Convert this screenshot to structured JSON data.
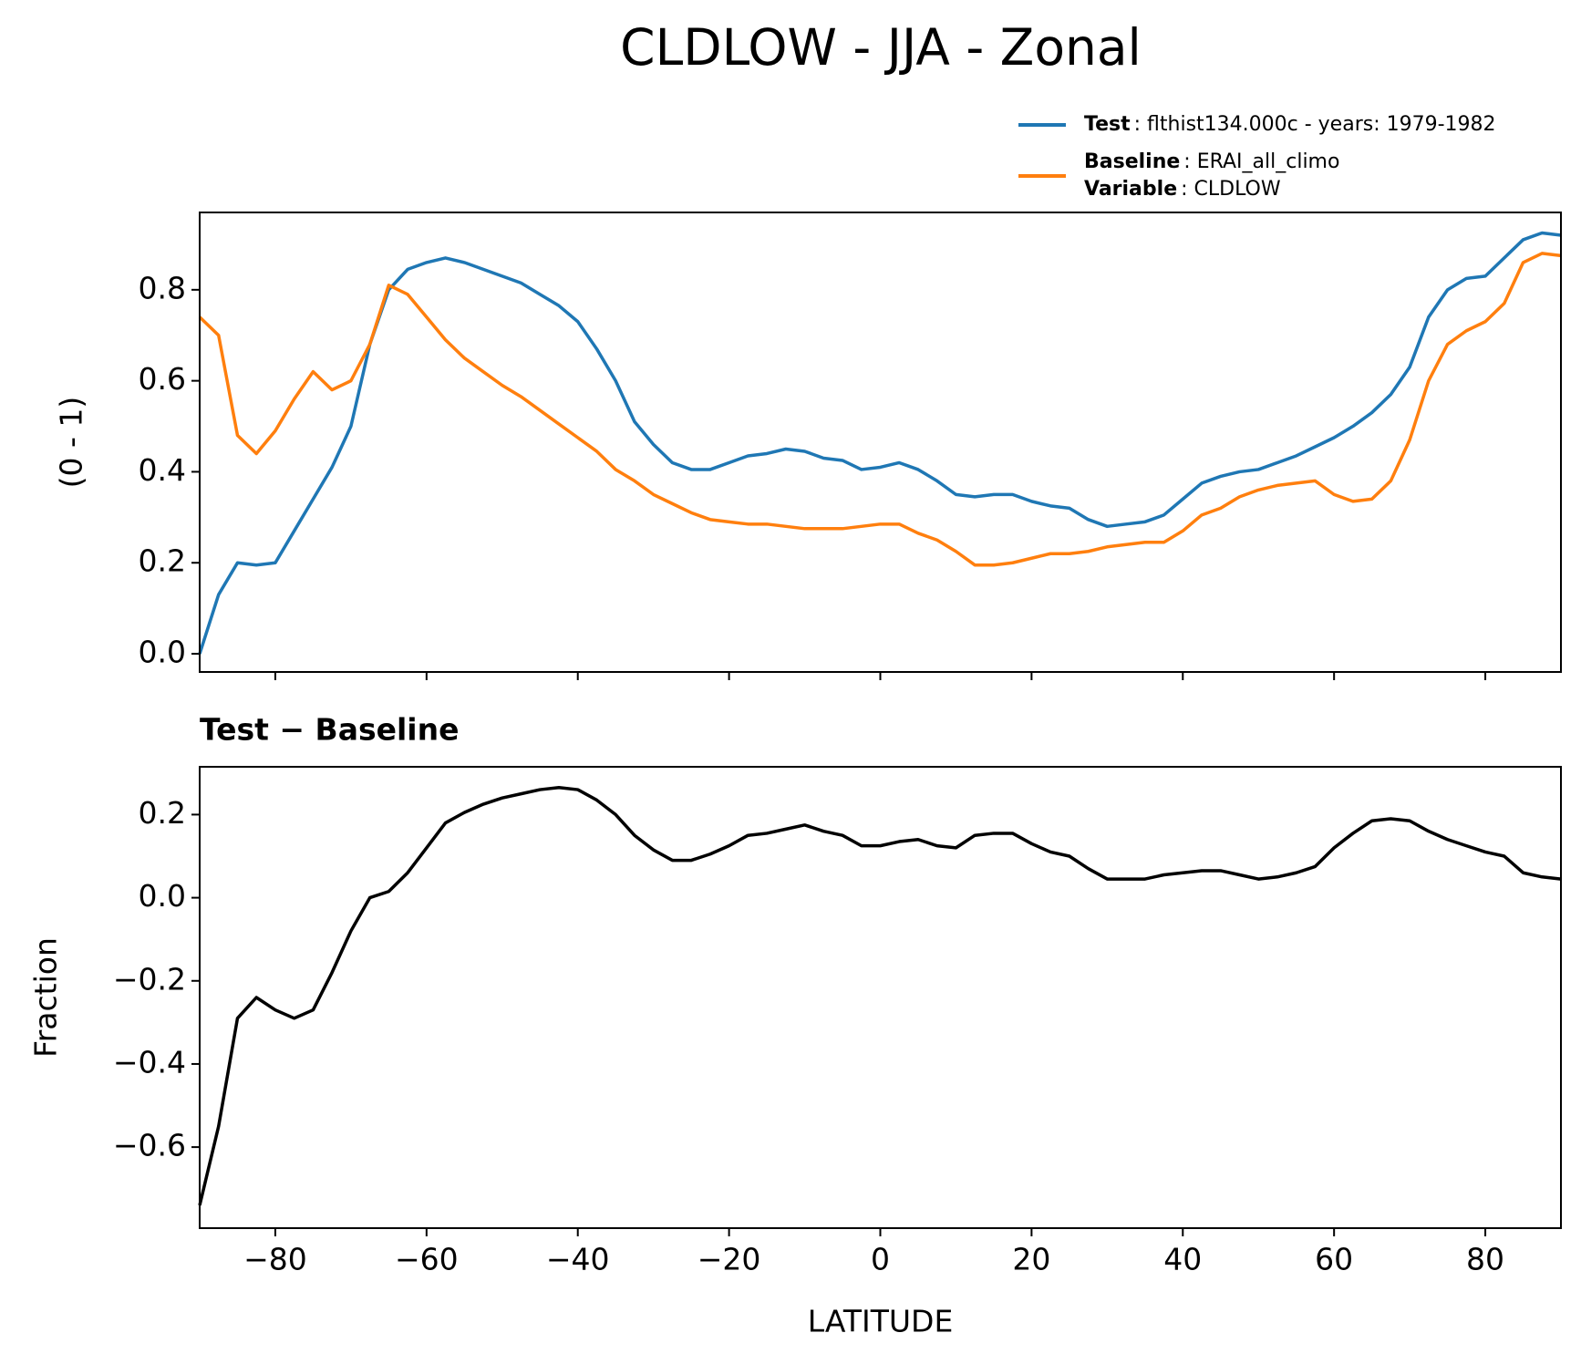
{
  "title": "CLDLOW - JJA - Zonal",
  "chart_data": [
    {
      "type": "line",
      "ylabel": "(0 - 1)",
      "x": [
        -90,
        -87.5,
        -85,
        -82.5,
        -80,
        -77.5,
        -75,
        -72.5,
        -70,
        -67.5,
        -65,
        -62.5,
        -60,
        -57.5,
        -55,
        -52.5,
        -50,
        -47.5,
        -45,
        -42.5,
        -40,
        -37.5,
        -35,
        -32.5,
        -30,
        -27.5,
        -25,
        -22.5,
        -20,
        -17.5,
        -15,
        -12.5,
        -10,
        -7.5,
        -5,
        -2.5,
        0,
        2.5,
        5,
        7.5,
        10,
        12.5,
        15,
        17.5,
        20,
        22.5,
        25,
        27.5,
        30,
        32.5,
        35,
        37.5,
        40,
        42.5,
        45,
        47.5,
        50,
        52.5,
        55,
        57.5,
        60,
        62.5,
        65,
        67.5,
        70,
        72.5,
        75,
        77.5,
        80,
        82.5,
        85,
        87.5,
        90
      ],
      "series": [
        {
          "name": "Test",
          "description": ": flthist134.000c - years: 1979-1982",
          "color": "#1f77b4",
          "values": [
            0.0,
            0.13,
            0.2,
            0.195,
            0.2,
            0.27,
            0.34,
            0.41,
            0.5,
            0.68,
            0.8,
            0.845,
            0.86,
            0.87,
            0.86,
            0.845,
            0.83,
            0.815,
            0.79,
            0.765,
            0.73,
            0.67,
            0.6,
            0.51,
            0.46,
            0.42,
            0.405,
            0.405,
            0.42,
            0.435,
            0.44,
            0.45,
            0.445,
            0.43,
            0.425,
            0.405,
            0.41,
            0.42,
            0.405,
            0.38,
            0.35,
            0.345,
            0.35,
            0.35,
            0.335,
            0.325,
            0.32,
            0.295,
            0.28,
            0.285,
            0.29,
            0.305,
            0.34,
            0.375,
            0.39,
            0.4,
            0.405,
            0.42,
            0.435,
            0.455,
            0.475,
            0.5,
            0.53,
            0.57,
            0.63,
            0.74,
            0.8,
            0.825,
            0.83,
            0.87,
            0.91,
            0.925,
            0.92
          ]
        },
        {
          "name": "Baseline",
          "description": ": ERAI_all_climo",
          "extra_name": "Variable",
          "extra_description": ": CLDLOW",
          "color": "#ff7f0e",
          "values": [
            0.74,
            0.7,
            0.48,
            0.44,
            0.49,
            0.56,
            0.62,
            0.58,
            0.6,
            0.68,
            0.81,
            0.79,
            0.74,
            0.69,
            0.65,
            0.62,
            0.59,
            0.565,
            0.535,
            0.505,
            0.475,
            0.445,
            0.405,
            0.38,
            0.35,
            0.33,
            0.31,
            0.295,
            0.29,
            0.285,
            0.285,
            0.28,
            0.275,
            0.275,
            0.275,
            0.28,
            0.285,
            0.285,
            0.265,
            0.25,
            0.225,
            0.195,
            0.195,
            0.2,
            0.21,
            0.22,
            0.22,
            0.225,
            0.235,
            0.24,
            0.245,
            0.245,
            0.27,
            0.305,
            0.32,
            0.345,
            0.36,
            0.37,
            0.375,
            0.38,
            0.35,
            0.335,
            0.34,
            0.38,
            0.47,
            0.6,
            0.68,
            0.71,
            0.73,
            0.77,
            0.86,
            0.88,
            0.875
          ]
        }
      ],
      "xlim": [
        -90,
        90
      ],
      "xticks": [
        -80,
        -60,
        -40,
        -20,
        0,
        20,
        40,
        60,
        80
      ],
      "xticklabels": false,
      "ylim": [
        -0.04,
        0.97
      ],
      "yticks": [
        {
          "value": 0,
          "label": "0.0"
        },
        0.2,
        0.4,
        0.6,
        0.8
      ]
    },
    {
      "type": "line",
      "title": "Test − Baseline",
      "xlabel": "LATITUDE",
      "ylabel": "Fraction",
      "x": [
        -90,
        -87.5,
        -85,
        -82.5,
        -80,
        -77.5,
        -75,
        -72.5,
        -70,
        -67.5,
        -65,
        -62.5,
        -60,
        -57.5,
        -55,
        -52.5,
        -50,
        -47.5,
        -45,
        -42.5,
        -40,
        -37.5,
        -35,
        -32.5,
        -30,
        -27.5,
        -25,
        -22.5,
        -20,
        -17.5,
        -15,
        -12.5,
        -10,
        -7.5,
        -5,
        -2.5,
        0,
        2.5,
        5,
        7.5,
        10,
        12.5,
        15,
        17.5,
        20,
        22.5,
        25,
        27.5,
        30,
        32.5,
        35,
        37.5,
        40,
        42.5,
        45,
        47.5,
        50,
        52.5,
        55,
        57.5,
        60,
        62.5,
        65,
        67.5,
        70,
        72.5,
        75,
        77.5,
        80,
        82.5,
        85,
        87.5,
        90
      ],
      "color": "#000000",
      "values": [
        -0.74,
        -0.55,
        -0.29,
        -0.24,
        -0.27,
        -0.29,
        -0.27,
        -0.18,
        -0.08,
        0.0,
        0.015,
        0.06,
        0.12,
        0.18,
        0.205,
        0.225,
        0.24,
        0.25,
        0.26,
        0.265,
        0.26,
        0.235,
        0.2,
        0.15,
        0.115,
        0.09,
        0.09,
        0.105,
        0.125,
        0.15,
        0.155,
        0.165,
        0.175,
        0.16,
        0.15,
        0.125,
        0.125,
        0.135,
        0.14,
        0.125,
        0.12,
        0.15,
        0.155,
        0.155,
        0.13,
        0.11,
        0.1,
        0.07,
        0.045,
        0.045,
        0.045,
        0.055,
        0.06,
        0.065,
        0.065,
        0.055,
        0.045,
        0.05,
        0.06,
        0.075,
        0.12,
        0.155,
        0.185,
        0.19,
        0.185,
        0.16,
        0.14,
        0.125,
        0.11,
        0.1,
        0.06,
        0.05,
        0.045
      ],
      "xlim": [
        -90,
        90
      ],
      "xticks": [
        {
          "value": -80,
          "label": "−80"
        },
        {
          "value": -60,
          "label": "−60"
        },
        {
          "value": -40,
          "label": "−40"
        },
        {
          "value": -20,
          "label": "−20"
        },
        0,
        20,
        40,
        60,
        80
      ],
      "ylim": [
        -0.795,
        0.315
      ],
      "yticks": [
        {
          "value": -0.6,
          "label": "−0.6"
        },
        {
          "value": -0.4,
          "label": "−0.4"
        },
        {
          "value": -0.2,
          "label": "−0.2"
        },
        {
          "value": 0,
          "label": "0.0"
        },
        0.2
      ]
    }
  ]
}
